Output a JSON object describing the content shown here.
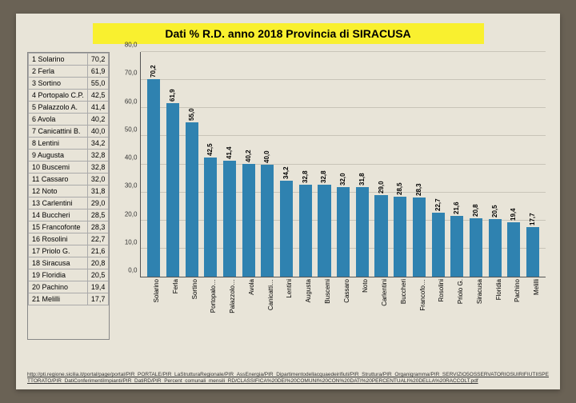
{
  "title": "Dati % R.D. anno 2018 Provincia di SIRACUSA",
  "title_bg": "#f9f02f",
  "title_color": "#000000",
  "paper_bg": "#e8e4d8",
  "chart": {
    "type": "bar",
    "bar_color": "#2f82b0",
    "grid_color": "#c8c4b8",
    "axis_color": "#555555",
    "ylim_max": 80,
    "ytick_step": 10,
    "yticks": [
      "0,0",
      "10,0",
      "20,0",
      "30,0",
      "40,0",
      "50,0",
      "60,0",
      "70,0",
      "80,0"
    ],
    "label_fontsize": 8,
    "value_fontsize": 8
  },
  "municipalities": [
    {
      "rank": 1,
      "name": "Solarino",
      "short": "Solarino",
      "value": 70.2,
      "value_str": "70,2"
    },
    {
      "rank": 2,
      "name": "Ferla",
      "short": "Ferla",
      "value": 61.9,
      "value_str": "61,9"
    },
    {
      "rank": 3,
      "name": "Sortino",
      "short": "Sortino",
      "value": 55.0,
      "value_str": "55,0"
    },
    {
      "rank": 4,
      "name": "Portopalo C.P.",
      "short": "Portopalo…",
      "value": 42.5,
      "value_str": "42,5"
    },
    {
      "rank": 5,
      "name": "Palazzolo A.",
      "short": "Palazzolo…",
      "value": 41.4,
      "value_str": "41,4"
    },
    {
      "rank": 6,
      "name": "Avola",
      "short": "Avola",
      "value": 40.2,
      "value_str": "40,2"
    },
    {
      "rank": 7,
      "name": "Canicattini B.",
      "short": "Canicatti…",
      "value": 40.0,
      "value_str": "40,0"
    },
    {
      "rank": 8,
      "name": "Lentini",
      "short": "Lentini",
      "value": 34.2,
      "value_str": "34,2"
    },
    {
      "rank": 9,
      "name": "Augusta",
      "short": "Augusta",
      "value": 32.8,
      "value_str": "32,8"
    },
    {
      "rank": 10,
      "name": "Buscemi",
      "short": "Buscemi",
      "value": 32.8,
      "value_str": "32,8"
    },
    {
      "rank": 11,
      "name": "Cassaro",
      "short": "Cassaro",
      "value": 32.0,
      "value_str": "32,0"
    },
    {
      "rank": 12,
      "name": "Noto",
      "short": "Noto",
      "value": 31.8,
      "value_str": "31,8"
    },
    {
      "rank": 13,
      "name": "Carlentini",
      "short": "Carlentini",
      "value": 29.0,
      "value_str": "29,0"
    },
    {
      "rank": 14,
      "name": "Buccheri",
      "short": "Buccheri",
      "value": 28.5,
      "value_str": "28,5"
    },
    {
      "rank": 15,
      "name": "Francofonte",
      "short": "Francofo…",
      "value": 28.3,
      "value_str": "28,3"
    },
    {
      "rank": 16,
      "name": "Rosolini",
      "short": "Rosolini",
      "value": 22.7,
      "value_str": "22,7"
    },
    {
      "rank": 17,
      "name": "Priolo G.",
      "short": "Priolo G.",
      "value": 21.6,
      "value_str": "21,6"
    },
    {
      "rank": 18,
      "name": "Siracusa",
      "short": "Siracusa",
      "value": 20.8,
      "value_str": "20,8"
    },
    {
      "rank": 19,
      "name": "Floridia",
      "short": "Floridia",
      "value": 20.5,
      "value_str": "20,5"
    },
    {
      "rank": 20,
      "name": "Pachino",
      "short": "Pachino",
      "value": 19.4,
      "value_str": "19,4"
    },
    {
      "rank": 21,
      "name": "Melilli",
      "short": "Melilli",
      "value": 17.7,
      "value_str": "17,7"
    }
  ],
  "footer_url": "http://pti.regione.sicilia.it/portal/page/portal/PIR_PORTALE/PIR_LaStrutturaRegionale/PIR_AssEnergia/PIR_Dipartimentodellacquaedeirifiuti/PIR_Struttura/PIR_Organigramma/PIR_SERVIZIO5OSSERVATORIOSUIRIFIUTIISPETTORATO/PIR_DatiConferimentiImpianti/PIR_DatiRD/PIR_Percent_comunali_mensili_RD/CLASSIFICA%20DEI%20COMUNI%20CON%20DATI%20PERCENTUALI%20DELLA%20RACCOLT.pdf"
}
